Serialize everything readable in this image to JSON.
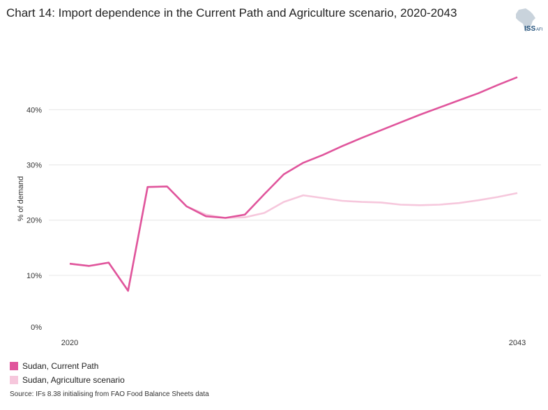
{
  "title": "Chart 14: Import dependence in the Current Path and Agriculture scenario, 2020-2043",
  "logo_text": "ISS",
  "logo_suffix": "AFI",
  "source": "Source: IFs 8.38 initialising from FAO Food Balance Sheets data",
  "colors": {
    "current_path": "#e0559c",
    "agriculture": "#f6c7dc",
    "grid": "#e6e6e6",
    "logo_map": "#c9d3dc",
    "logo_text": "#1f4e79"
  },
  "chart_data": {
    "type": "line",
    "title": "Chart 14: Import dependence in the Current Path and Agriculture scenario, 2020-2043",
    "xlabel": "",
    "ylabel": "% of demand",
    "x": [
      2020,
      2021,
      2022,
      2023,
      2024,
      2025,
      2026,
      2027,
      2028,
      2029,
      2030,
      2031,
      2032,
      2033,
      2034,
      2035,
      2036,
      2037,
      2038,
      2039,
      2040,
      2041,
      2042,
      2043
    ],
    "x_tick_labels": [
      "2020",
      "2043"
    ],
    "y_ticks": [
      0,
      10,
      20,
      30,
      40
    ],
    "y_tick_labels": [
      "0%",
      "10%",
      "20%",
      "30%",
      "40%"
    ],
    "ylim": [
      0,
      47
    ],
    "grid": true,
    "legend_position": "bottom-left",
    "series": [
      {
        "name": "Sudan, Current Path",
        "color_key": "current_path",
        "values": [
          12.1,
          11.7,
          12.3,
          7.2,
          26.0,
          26.1,
          22.5,
          20.7,
          20.4,
          21.0,
          24.7,
          28.3,
          30.4,
          31.8,
          33.4,
          34.9,
          36.3,
          37.7,
          39.1,
          40.4,
          41.7,
          43.0,
          44.5,
          45.9
        ]
      },
      {
        "name": "Sudan, Agriculture scenario",
        "color_key": "agriculture",
        "values": [
          12.1,
          11.7,
          12.3,
          7.2,
          26.0,
          26.1,
          22.5,
          21.0,
          20.4,
          20.5,
          21.3,
          23.3,
          24.5,
          24.0,
          23.5,
          23.3,
          23.2,
          22.8,
          22.7,
          22.8,
          23.1,
          23.6,
          24.2,
          24.9
        ]
      }
    ]
  }
}
